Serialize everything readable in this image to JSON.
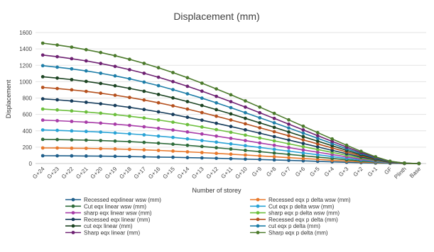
{
  "chart_data": {
    "type": "line",
    "title": "Displacement (mm)",
    "xlabel": "Number of storey",
    "ylabel": "Displacement",
    "ylim": [
      0,
      1600
    ],
    "yticks": [
      0,
      200,
      400,
      600,
      800,
      1000,
      1200,
      1400,
      1600
    ],
    "grid": true,
    "legend_position": "bottom",
    "categories": [
      "G+24",
      "G+23",
      "G+22",
      "G+21",
      "G+20",
      "G+19",
      "G+18",
      "G+17",
      "G+16",
      "G+15",
      "G+14",
      "G+13",
      "G+12",
      "G+11",
      "G+10",
      "G+9",
      "G+8",
      "G+7",
      "G+6",
      "G+5",
      "G+4",
      "G+3",
      "G+2",
      "G+1",
      "GF",
      "Plinth",
      "Base"
    ],
    "series": [
      {
        "name": "Recessed eqxlinear wsw (mm)",
        "color": "#1f5f8b",
        "values": [
          95,
          94,
          93,
          92,
          90,
          88,
          85,
          82,
          79,
          76,
          72,
          68,
          64,
          59,
          54,
          49,
          44,
          38,
          33,
          27,
          21,
          15,
          10,
          5,
          2,
          1,
          0
        ]
      },
      {
        "name": "Recessed eqx p delta wsw (mm)",
        "color": "#e8792c",
        "values": [
          190,
          189,
          187,
          185,
          182,
          178,
          173,
          167,
          160,
          152,
          143,
          134,
          124,
          114,
          104,
          93,
          83,
          72,
          61,
          51,
          40,
          30,
          20,
          11,
          4,
          1,
          0
        ]
      },
      {
        "name": "Cut eqx linear wsw (mm)",
        "color": "#2e6b3a",
        "values": [
          295,
          292,
          289,
          285,
          280,
          274,
          267,
          258,
          248,
          236,
          222,
          208,
          193,
          177,
          161,
          145,
          128,
          112,
          95,
          79,
          62,
          46,
          31,
          17,
          6,
          1,
          0
        ]
      },
      {
        "name": "Cut eqx p delta wsw (mm)",
        "color": "#29a3d6",
        "values": [
          410,
          405,
          399,
          392,
          384,
          374,
          363,
          350,
          335,
          319,
          301,
          281,
          261,
          240,
          218,
          196,
          174,
          151,
          129,
          107,
          85,
          63,
          42,
          23,
          8,
          2,
          0
        ]
      },
      {
        "name": "sharp eqx linear wsw (mm)",
        "color": "#a83ca8",
        "values": [
          530,
          523,
          515,
          505,
          494,
          481,
          466,
          449,
          430,
          409,
          386,
          361,
          335,
          308,
          280,
          252,
          223,
          195,
          166,
          138,
          110,
          81,
          54,
          30,
          10,
          2,
          0
        ]
      },
      {
        "name": "sharp eqx p delta wsw (mm)",
        "color": "#6cbf3d",
        "values": [
          665,
          655,
          643,
          630,
          615,
          598,
          578,
          556,
          532,
          505,
          476,
          446,
          414,
          381,
          347,
          312,
          277,
          241,
          206,
          171,
          136,
          101,
          67,
          37,
          13,
          2,
          0
        ]
      },
      {
        "name": "Recessed eqx linear (mm)",
        "color": "#173d5c",
        "values": [
          790,
          778,
          764,
          748,
          730,
          709,
          686,
          660,
          631,
          599,
          565,
          529,
          491,
          452,
          412,
          371,
          329,
          287,
          245,
          203,
          161,
          120,
          80,
          44,
          15,
          3,
          0
        ]
      },
      {
        "name": "Recessed eqx p delta (mm)",
        "color": "#b5501d",
        "values": [
          930,
          916,
          900,
          881,
          859,
          835,
          807,
          776,
          742,
          705,
          665,
          623,
          578,
          532,
          485,
          437,
          388,
          339,
          289,
          240,
          190,
          141,
          94,
          52,
          18,
          3,
          0
        ]
      },
      {
        "name": "cut eqx linear (mm)",
        "color": "#1c4422",
        "values": [
          1060,
          1044,
          1025,
          1003,
          978,
          950,
          918,
          883,
          844,
          802,
          757,
          709,
          658,
          606,
          552,
          497,
          442,
          386,
          329,
          273,
          217,
          161,
          107,
          59,
          20,
          4,
          0
        ]
      },
      {
        "name": "cut eqx p delta (mm)",
        "color": "#1e7ea8",
        "values": [
          1195,
          1177,
          1156,
          1131,
          1103,
          1071,
          1035,
          995,
          951,
          903,
          852,
          798,
          741,
          682,
          621,
          559,
          497,
          434,
          371,
          308,
          244,
          181,
          121,
          67,
          23,
          4,
          0
        ]
      },
      {
        "name": "Sharp eqx linear (mm)",
        "color": "#6e2172",
        "values": [
          1325,
          1305,
          1281,
          1254,
          1222,
          1187,
          1147,
          1103,
          1054,
          1001,
          944,
          884,
          821,
          756,
          689,
          620,
          551,
          481,
          411,
          341,
          271,
          201,
          134,
          74,
          25,
          5,
          0
        ]
      },
      {
        "name": "Sharp eqx p delta (mm)",
        "color": "#4b7a2b",
        "values": [
          1470,
          1448,
          1422,
          1391,
          1356,
          1317,
          1273,
          1224,
          1170,
          1111,
          1048,
          982,
          912,
          840,
          765,
          689,
          612,
          534,
          456,
          378,
          300,
          223,
          149,
          82,
          28,
          5,
          0
        ]
      }
    ]
  }
}
